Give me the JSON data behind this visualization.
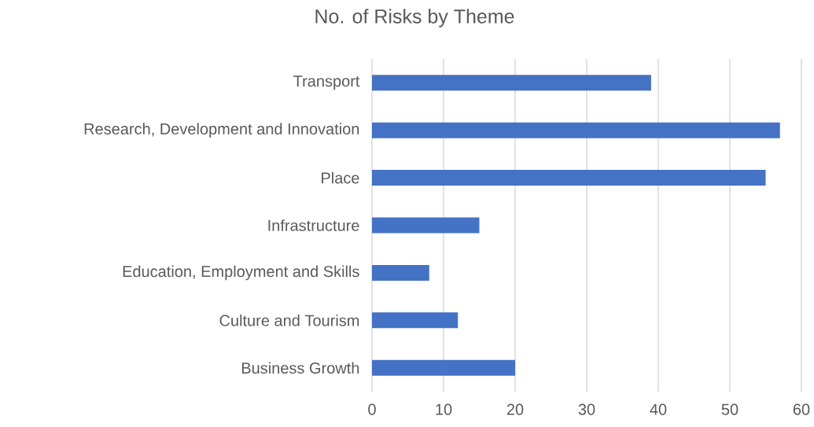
{
  "chart_data": {
    "type": "bar",
    "orientation": "horizontal",
    "title": "No. of Risks by Theme",
    "categories": [
      "Transport",
      "Research, Development and Innovation",
      "Place",
      "Infrastructure",
      "Education, Employment and Skills",
      "Culture and Tourism",
      "Business Growth"
    ],
    "values": [
      39,
      57,
      55,
      15,
      8,
      12,
      20
    ],
    "color": "#4472c4",
    "xlim": [
      0,
      60
    ],
    "xticks": [
      0,
      10,
      20,
      30,
      40,
      50,
      60
    ],
    "grid": "x"
  }
}
